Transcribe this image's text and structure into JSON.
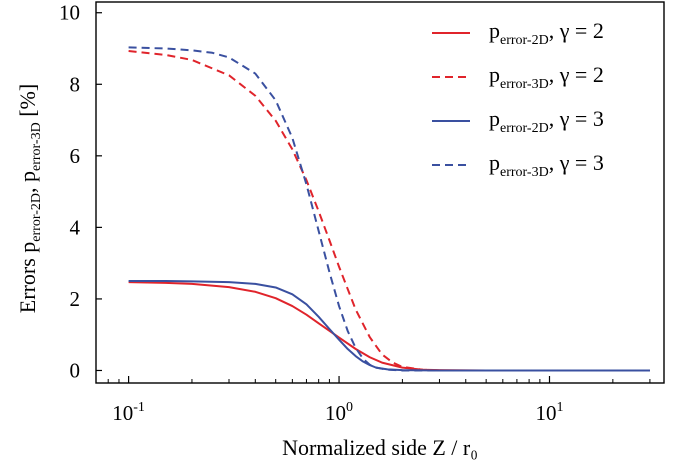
{
  "chart_data": {
    "type": "line",
    "xscale": "log",
    "xlim": [
      0.07,
      35
    ],
    "ylim": [
      -0.35,
      10.3
    ],
    "xlabel": "Normalized side Z / r₀",
    "ylabel": {
      "prefix": "Errors p",
      "sub1": "error-2D",
      "mid": ", p",
      "sub2": "error-3D",
      "suffix": " [%]"
    },
    "x_ticks": [
      {
        "value": 0.1,
        "base": "10",
        "exp": "-1"
      },
      {
        "value": 1,
        "base": "10",
        "exp": "0"
      },
      {
        "value": 10,
        "base": "10",
        "exp": "1"
      }
    ],
    "y_ticks": [
      0,
      2,
      4,
      6,
      8,
      10
    ],
    "grid": false,
    "legend_position": "top-right",
    "series": [
      {
        "name": "p error-2D, γ = 2",
        "label": {
          "main": "p",
          "sub": "error-2D",
          "rest": ", γ = 2"
        },
        "color": "#e0242b",
        "dash": "solid",
        "x": [
          0.1,
          0.15,
          0.2,
          0.3,
          0.4,
          0.5,
          0.6,
          0.7,
          0.8,
          0.9,
          1.0,
          1.2,
          1.4,
          1.6,
          2.0,
          2.5,
          3,
          5,
          10,
          20,
          30
        ],
        "y": [
          2.47,
          2.45,
          2.42,
          2.33,
          2.2,
          2.02,
          1.8,
          1.56,
          1.32,
          1.11,
          0.92,
          0.6,
          0.37,
          0.22,
          0.08,
          0.02,
          0.01,
          0.0,
          0.0,
          0.0,
          0.0
        ]
      },
      {
        "name": "p error-3D, γ = 2",
        "label": {
          "main": "p",
          "sub": "error-3D",
          "rest": ", γ = 2"
        },
        "color": "#e0242b",
        "dash": "dashed",
        "x": [
          0.1,
          0.15,
          0.2,
          0.3,
          0.4,
          0.5,
          0.6,
          0.7,
          0.8,
          0.9,
          1.0,
          1.2,
          1.4,
          1.6,
          1.8,
          2.0,
          2.5,
          3,
          5,
          10,
          20,
          30
        ],
        "y": [
          8.93,
          8.82,
          8.68,
          8.25,
          7.68,
          6.98,
          6.18,
          5.32,
          4.45,
          3.64,
          2.9,
          1.7,
          0.93,
          0.45,
          0.22,
          0.1,
          0.02,
          0.0,
          0.0,
          0.0,
          0.0,
          0.0
        ]
      },
      {
        "name": "p error-2D, γ = 3",
        "label": {
          "main": "p",
          "sub": "error-2D",
          "rest": ", γ = 3"
        },
        "color": "#3a50a0",
        "dash": "solid",
        "x": [
          0.1,
          0.15,
          0.2,
          0.3,
          0.4,
          0.5,
          0.6,
          0.7,
          0.8,
          0.9,
          1.0,
          1.1,
          1.2,
          1.3,
          1.4,
          1.5,
          1.7,
          2.0,
          3,
          5,
          10,
          20,
          30
        ],
        "y": [
          2.5,
          2.5,
          2.49,
          2.47,
          2.42,
          2.32,
          2.13,
          1.85,
          1.5,
          1.16,
          0.86,
          0.6,
          0.4,
          0.25,
          0.15,
          0.08,
          0.03,
          0.01,
          0.0,
          0.0,
          0.0,
          0.0,
          0.0
        ]
      },
      {
        "name": "p error-3D, γ = 3",
        "label": {
          "main": "p",
          "sub": "error-3D",
          "rest": ", γ = 3"
        },
        "color": "#3a50a0",
        "dash": "dashed",
        "x": [
          0.1,
          0.15,
          0.2,
          0.25,
          0.3,
          0.4,
          0.5,
          0.6,
          0.7,
          0.8,
          0.9,
          1.0,
          1.1,
          1.2,
          1.3,
          1.4,
          1.5,
          1.7,
          2.0,
          3,
          5,
          10,
          20,
          30
        ],
        "y": [
          9.03,
          9.0,
          8.95,
          8.88,
          8.75,
          8.3,
          7.55,
          6.5,
          5.2,
          3.9,
          2.75,
          1.8,
          1.1,
          0.63,
          0.33,
          0.16,
          0.08,
          0.02,
          0.0,
          0.0,
          0.0,
          0.0,
          0.0,
          0.0
        ]
      }
    ]
  }
}
